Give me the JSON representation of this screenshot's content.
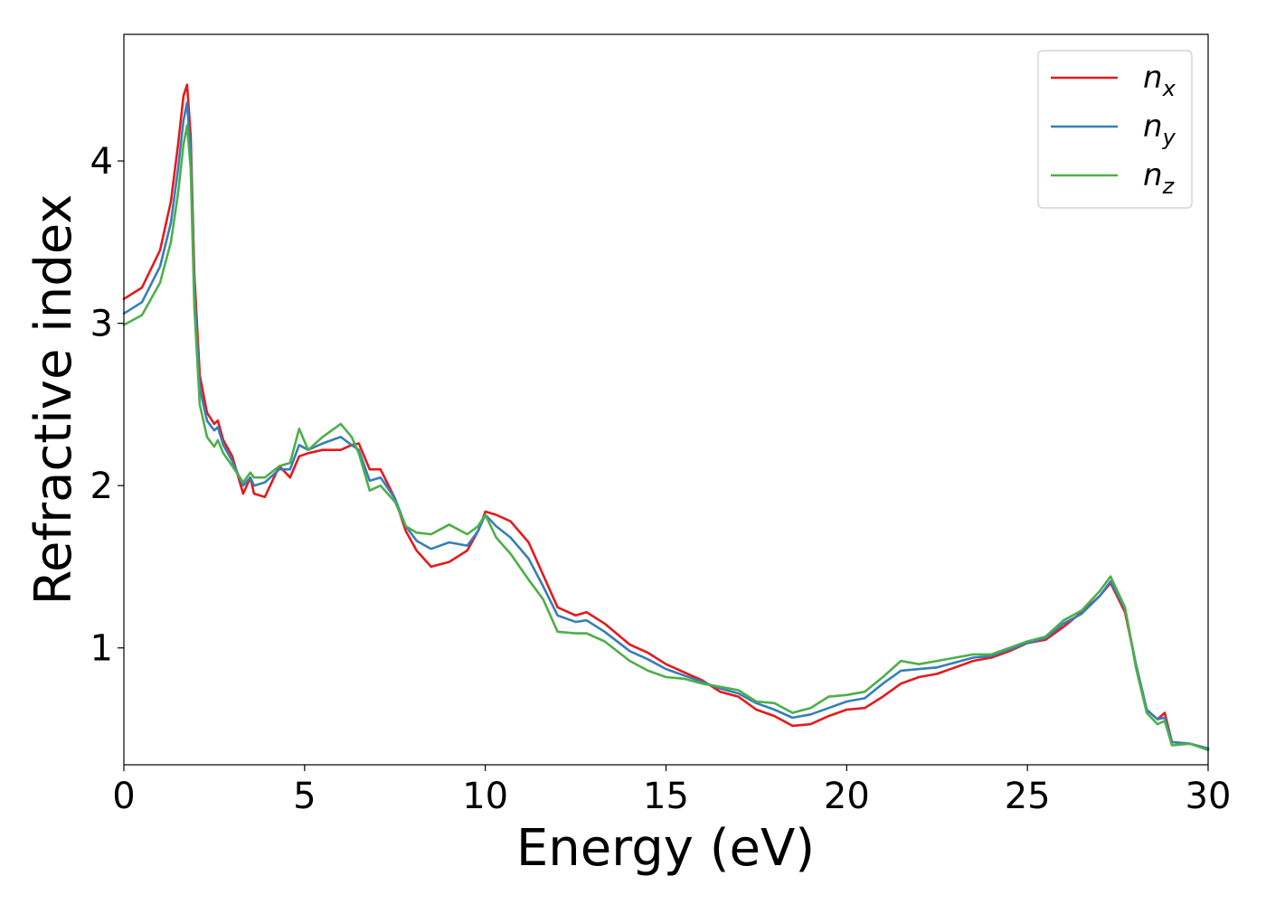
{
  "chart_data": {
    "type": "line",
    "xlabel": "Energy (eV)",
    "ylabel": "Refractive index",
    "xlim": [
      0,
      30
    ],
    "ylim": [
      0.28,
      4.78
    ],
    "xticks": [
      "0",
      "5",
      "10",
      "15",
      "20",
      "25",
      "30"
    ],
    "yticks": [
      "1",
      "2",
      "3",
      "4"
    ],
    "grid": false,
    "legend_position": "top-right",
    "series": [
      {
        "name": "n",
        "subscript": "x",
        "color": "#e41a1c",
        "x": [
          0,
          0.5,
          1.0,
          1.3,
          1.5,
          1.65,
          1.75,
          1.85,
          1.95,
          2.1,
          2.3,
          2.5,
          2.6,
          2.75,
          3.0,
          3.3,
          3.5,
          3.6,
          3.9,
          4.3,
          4.6,
          4.85,
          5.1,
          5.5,
          6.0,
          6.3,
          6.5,
          6.8,
          7.1,
          7.5,
          7.8,
          8.1,
          8.5,
          9.0,
          9.5,
          9.8,
          10.0,
          10.3,
          10.7,
          11.2,
          11.6,
          12.0,
          12.5,
          12.8,
          13.3,
          14.0,
          14.5,
          15.0,
          15.5,
          16.0,
          16.5,
          17.0,
          17.5,
          18.0,
          18.5,
          19.0,
          19.5,
          20.0,
          20.5,
          21.0,
          21.5,
          22.0,
          22.5,
          23.0,
          23.5,
          24.0,
          24.5,
          25.0,
          25.5,
          26.0,
          26.5,
          27.0,
          27.3,
          27.7,
          28.0,
          28.3,
          28.6,
          28.8,
          29.0,
          29.5,
          30.0
        ],
        "values": [
          3.15,
          3.22,
          3.45,
          3.75,
          4.1,
          4.4,
          4.47,
          4.15,
          3.3,
          2.68,
          2.45,
          2.38,
          2.4,
          2.28,
          2.18,
          1.95,
          2.05,
          1.95,
          1.93,
          2.12,
          2.05,
          2.18,
          2.2,
          2.22,
          2.22,
          2.25,
          2.26,
          2.1,
          2.1,
          1.92,
          1.72,
          1.6,
          1.5,
          1.53,
          1.6,
          1.72,
          1.84,
          1.82,
          1.78,
          1.65,
          1.45,
          1.25,
          1.2,
          1.22,
          1.15,
          1.02,
          0.97,
          0.9,
          0.85,
          0.8,
          0.73,
          0.7,
          0.62,
          0.58,
          0.52,
          0.53,
          0.58,
          0.62,
          0.63,
          0.7,
          0.78,
          0.82,
          0.84,
          0.88,
          0.92,
          0.94,
          0.98,
          1.03,
          1.05,
          1.13,
          1.22,
          1.32,
          1.4,
          1.22,
          0.9,
          0.62,
          0.56,
          0.6,
          0.42,
          0.41,
          0.38
        ]
      },
      {
        "name": "n",
        "subscript": "y",
        "color": "#377eb8",
        "x": [
          0,
          0.5,
          1.0,
          1.3,
          1.5,
          1.65,
          1.75,
          1.85,
          1.95,
          2.1,
          2.3,
          2.5,
          2.6,
          2.75,
          3.0,
          3.3,
          3.5,
          3.6,
          3.9,
          4.3,
          4.6,
          4.85,
          5.1,
          5.5,
          6.0,
          6.3,
          6.5,
          6.8,
          7.1,
          7.5,
          7.8,
          8.1,
          8.5,
          9.0,
          9.5,
          9.8,
          10.0,
          10.3,
          10.7,
          11.2,
          11.6,
          12.0,
          12.5,
          12.8,
          13.3,
          14.0,
          14.5,
          15.0,
          15.5,
          16.0,
          16.5,
          17.0,
          17.5,
          18.0,
          18.5,
          19.0,
          19.5,
          20.0,
          20.5,
          21.0,
          21.5,
          22.0,
          22.5,
          23.0,
          23.5,
          24.0,
          24.5,
          25.0,
          25.5,
          26.0,
          26.5,
          27.0,
          27.3,
          27.7,
          28.0,
          28.3,
          28.6,
          28.8,
          29.0,
          29.5,
          30.0
        ],
        "values": [
          3.06,
          3.13,
          3.35,
          3.62,
          3.95,
          4.25,
          4.36,
          4.05,
          3.2,
          2.6,
          2.4,
          2.34,
          2.36,
          2.25,
          2.15,
          2.0,
          2.05,
          2.0,
          2.02,
          2.1,
          2.1,
          2.25,
          2.22,
          2.26,
          2.3,
          2.25,
          2.22,
          2.03,
          2.05,
          1.92,
          1.75,
          1.66,
          1.61,
          1.65,
          1.63,
          1.72,
          1.82,
          1.75,
          1.68,
          1.55,
          1.38,
          1.2,
          1.16,
          1.17,
          1.1,
          0.98,
          0.93,
          0.87,
          0.83,
          0.79,
          0.75,
          0.72,
          0.66,
          0.62,
          0.57,
          0.59,
          0.63,
          0.67,
          0.69,
          0.78,
          0.86,
          0.87,
          0.88,
          0.91,
          0.94,
          0.95,
          0.99,
          1.03,
          1.06,
          1.15,
          1.21,
          1.32,
          1.41,
          1.24,
          0.9,
          0.62,
          0.56,
          0.57,
          0.42,
          0.41,
          0.38
        ]
      },
      {
        "name": "n",
        "subscript": "z",
        "color": "#4daf4a",
        "x": [
          0,
          0.5,
          1.0,
          1.3,
          1.5,
          1.65,
          1.75,
          1.85,
          1.95,
          2.1,
          2.3,
          2.5,
          2.6,
          2.75,
          3.0,
          3.3,
          3.5,
          3.6,
          3.9,
          4.3,
          4.6,
          4.85,
          5.1,
          5.5,
          6.0,
          6.3,
          6.5,
          6.8,
          7.1,
          7.5,
          7.8,
          8.1,
          8.5,
          9.0,
          9.5,
          9.8,
          10.0,
          10.3,
          10.7,
          11.2,
          11.6,
          12.0,
          12.5,
          12.8,
          13.3,
          14.0,
          14.5,
          15.0,
          15.5,
          16.0,
          16.5,
          17.0,
          17.5,
          18.0,
          18.5,
          19.0,
          19.5,
          20.0,
          20.5,
          21.0,
          21.5,
          22.0,
          22.5,
          23.0,
          23.5,
          24.0,
          24.5,
          25.0,
          25.5,
          26.0,
          26.5,
          27.0,
          27.3,
          27.7,
          28.0,
          28.3,
          28.6,
          28.8,
          29.0,
          29.5,
          30.0
        ],
        "values": [
          2.99,
          3.05,
          3.25,
          3.5,
          3.8,
          4.1,
          4.22,
          3.95,
          3.1,
          2.5,
          2.3,
          2.24,
          2.28,
          2.2,
          2.12,
          2.02,
          2.08,
          2.05,
          2.05,
          2.12,
          2.14,
          2.35,
          2.22,
          2.3,
          2.38,
          2.3,
          2.2,
          1.97,
          2.0,
          1.9,
          1.75,
          1.71,
          1.7,
          1.76,
          1.7,
          1.75,
          1.82,
          1.68,
          1.58,
          1.42,
          1.3,
          1.1,
          1.09,
          1.09,
          1.04,
          0.92,
          0.86,
          0.82,
          0.81,
          0.78,
          0.76,
          0.74,
          0.67,
          0.66,
          0.6,
          0.63,
          0.7,
          0.71,
          0.73,
          0.82,
          0.92,
          0.9,
          0.92,
          0.94,
          0.96,
          0.96,
          1.0,
          1.04,
          1.07,
          1.17,
          1.23,
          1.35,
          1.44,
          1.25,
          0.88,
          0.6,
          0.53,
          0.55,
          0.4,
          0.41,
          0.37
        ]
      }
    ]
  }
}
